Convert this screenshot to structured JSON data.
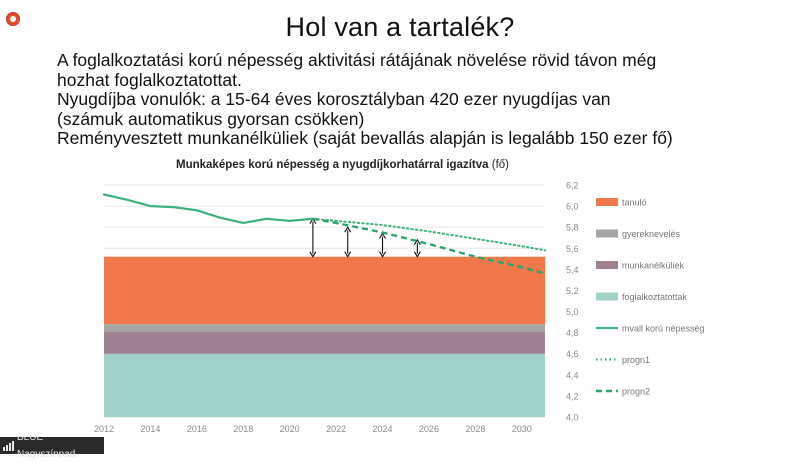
{
  "slide": {
    "title": "Hol van a tartalék?",
    "bullets": [
      "A foglalkoztatási korú népesség aktivitási rátájának növelése rövid távon még",
      "hozhat foglalkoztatottat.",
      "Nyugdíjba vonulók: a 15-64 éves korosztályban 420 ezer nyugdíjas van",
      "(számuk automatikus gyorsan csökken)",
      "Reményvesztett munkanélküliek (saját bevallás alapján is legalább 150 ezer fő)"
    ]
  },
  "recording_indicator_icon": "record-icon",
  "status_bar": {
    "label": "BLUE Nagyszínpad",
    "icon": "signal-bars-icon"
  },
  "chart_data": {
    "type": "area",
    "title": "Munkaképes korú népesség a nyugdíjkorhatárral igazítva",
    "title_unit": "(fő)",
    "x_ticks": [
      "2012",
      "2014",
      "2016",
      "2018",
      "2020",
      "2022",
      "2024",
      "2026",
      "2028",
      "2030"
    ],
    "y_ticks": [
      "4,0",
      "4,2",
      "4,4",
      "4,6",
      "4,8",
      "5,0",
      "5,2",
      "5,4",
      "5,6",
      "5,8",
      "6,0",
      "6,2"
    ],
    "xlim": [
      2012,
      2031
    ],
    "ylim": [
      4.0,
      6.2
    ],
    "grid": true,
    "legend_position": "right",
    "stacked_areas": [
      {
        "name": "foglalkoztatottak",
        "color": "#9fd3c7",
        "from": 4.0,
        "to": 4.6
      },
      {
        "name": "munkanélküliek",
        "color": "#9e8292",
        "from": 4.6,
        "to": 4.81
      },
      {
        "name": "gyereknevelés",
        "color": "#a6a6a6",
        "from": 4.81,
        "to": 4.88
      },
      {
        "name": "tanuló",
        "color": "#f0784b",
        "from": 4.88,
        "to": 5.52
      }
    ],
    "lines": [
      {
        "name": "mvall korú népesség",
        "color": "#3cb37c",
        "style": "solid",
        "x": [
          2012,
          2013,
          2014,
          2015,
          2016,
          2017,
          2018,
          2019,
          2020,
          2021
        ],
        "y": [
          6.11,
          6.06,
          6.0,
          5.99,
          5.96,
          5.89,
          5.84,
          5.88,
          5.86,
          5.88
        ]
      },
      {
        "name": "progn1",
        "color": "#3cb37c",
        "style": "dotted",
        "x": [
          2021,
          2022,
          2024,
          2026,
          2028,
          2030,
          2031
        ],
        "y": [
          5.88,
          5.86,
          5.82,
          5.76,
          5.69,
          5.62,
          5.58
        ]
      },
      {
        "name": "progn2",
        "color": "#2aa56a",
        "style": "dashed",
        "x": [
          2021,
          2022,
          2024,
          2026,
          2028,
          2030,
          2031
        ],
        "y": [
          5.88,
          5.84,
          5.75,
          5.64,
          5.52,
          5.42,
          5.36
        ]
      }
    ],
    "arrows": [
      {
        "x": 2021,
        "from": 5.52,
        "to": 5.88
      },
      {
        "x": 2022.5,
        "from": 5.52,
        "to": 5.8
      },
      {
        "x": 2024,
        "from": 5.52,
        "to": 5.74
      },
      {
        "x": 2025.5,
        "from": 5.52,
        "to": 5.68
      }
    ],
    "legend": [
      {
        "label": "tanuló",
        "color": "#f0784b",
        "kind": "box"
      },
      {
        "label": "gyereknevelés",
        "color": "#a6a6a6",
        "kind": "box"
      },
      {
        "label": "munkanélküliek",
        "color": "#9e8292",
        "kind": "box"
      },
      {
        "label": "foglalkoztatottak",
        "color": "#9fd3c7",
        "kind": "box"
      },
      {
        "label": "mvall korú népesség",
        "color": "#3cb37c",
        "kind": "solid"
      },
      {
        "label": "progn1",
        "color": "#3cb37c",
        "kind": "dotted"
      },
      {
        "label": "progn2",
        "color": "#2aa56a",
        "kind": "dashed"
      }
    ]
  }
}
